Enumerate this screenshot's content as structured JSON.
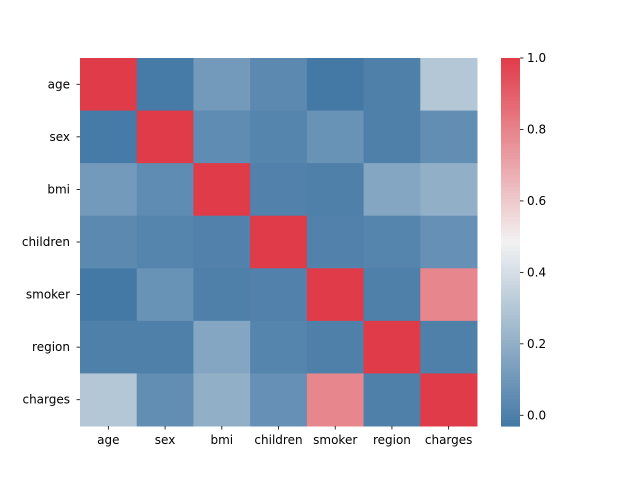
{
  "chart_data": {
    "type": "heatmap",
    "title": "",
    "xlabel": "",
    "ylabel": "",
    "x_labels": [
      "age",
      "sex",
      "bmi",
      "children",
      "smoker",
      "region",
      "charges"
    ],
    "y_labels": [
      "age",
      "sex",
      "bmi",
      "children",
      "smoker",
      "region",
      "charges"
    ],
    "values": [
      [
        1.0,
        -0.02,
        0.11,
        0.04,
        -0.03,
        0.0,
        0.3
      ],
      [
        -0.02,
        1.0,
        0.05,
        0.02,
        0.08,
        0.0,
        0.06
      ],
      [
        0.11,
        0.05,
        1.0,
        0.01,
        0.0,
        0.16,
        0.2
      ],
      [
        0.04,
        0.02,
        0.01,
        1.0,
        0.01,
        0.02,
        0.07
      ],
      [
        -0.03,
        0.08,
        0.0,
        0.01,
        1.0,
        0.0,
        0.79
      ],
      [
        0.0,
        0.0,
        0.16,
        0.02,
        0.0,
        1.0,
        0.0
      ],
      [
        0.3,
        0.06,
        0.2,
        0.07,
        0.79,
        0.0,
        1.0
      ]
    ],
    "colorbar": {
      "vmin": -0.03,
      "vmax": 1.0,
      "ticks": [
        0.0,
        0.2,
        0.4,
        0.6,
        0.8,
        1.0
      ],
      "tick_labels": [
        "0.0",
        "0.2",
        "0.4",
        "0.6",
        "0.8",
        "1.0"
      ]
    },
    "colormap": {
      "low": "#4479a6",
      "mid": "#f2f2f2",
      "high": "#e03b48"
    },
    "grid": false
  }
}
